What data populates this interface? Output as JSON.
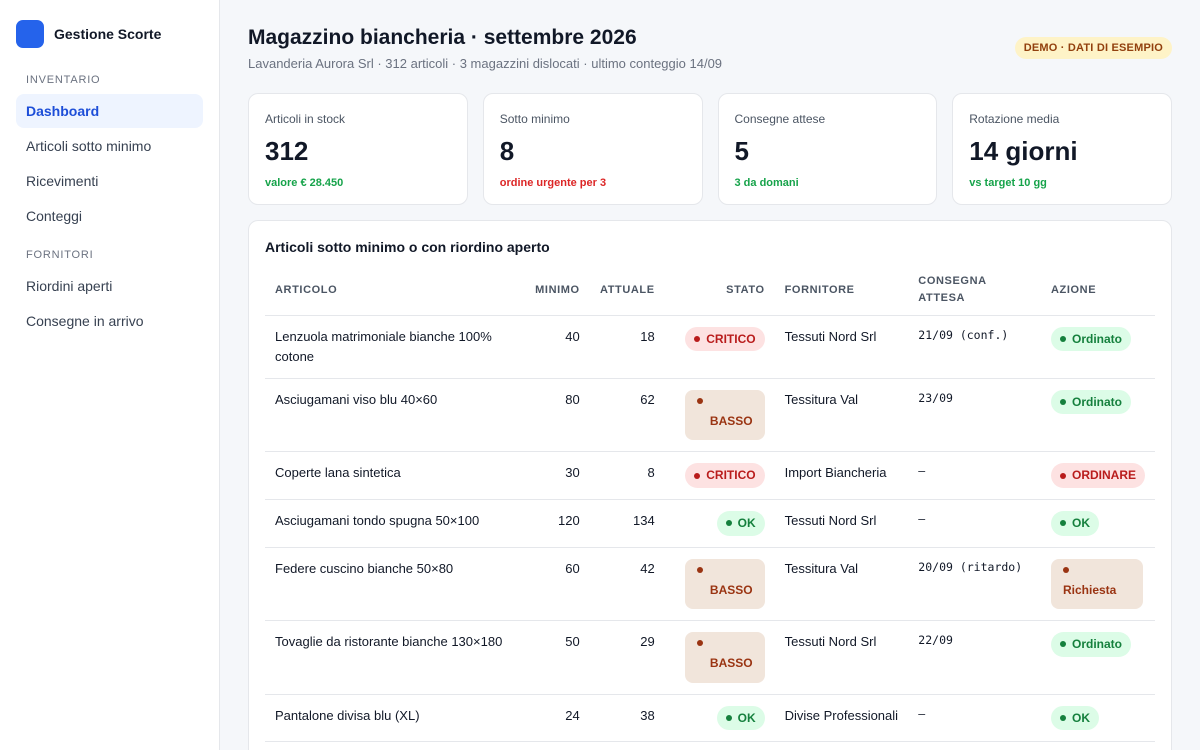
{
  "brand": {
    "name": "Gestione Scorte",
    "logo_color": "#2563eb"
  },
  "sidebar": {
    "sections": [
      {
        "title": "INVENTARIO",
        "items": [
          "Dashboard",
          "Articoli sotto minimo",
          "Ricevimenti",
          "Conteggi"
        ]
      },
      {
        "title": "FORNITORI",
        "items": [
          "Riordini aperti",
          "Consegne in arrivo"
        ]
      }
    ],
    "active": "Dashboard"
  },
  "header": {
    "title": "Magazzino biancheria · settembre 2026",
    "subtitle": "Lavanderia Aurora Srl · 312 articoli · 3 magazzini dislocati · ultimo conteggio 14/09",
    "badge": "DEMO · DATI DI ESEMPIO"
  },
  "kpis": [
    {
      "label": "Articoli in stock",
      "value": "312",
      "note": "valore € 28.450",
      "tone": "green"
    },
    {
      "label": "Sotto minimo",
      "value": "8",
      "note": "ordine urgente per 3",
      "tone": "red"
    },
    {
      "label": "Consegne attese",
      "value": "5",
      "note": "3 da domani",
      "tone": "green"
    },
    {
      "label": "Rotazione media",
      "value": "14 giorni",
      "note": "vs target 10 gg",
      "tone": "green"
    }
  ],
  "table": {
    "title": "Articoli sotto minimo o con riordino aperto",
    "columns": [
      "ARTICOLO",
      "MINIMO",
      "ATTUALE",
      "STATO",
      "FORNITORE",
      "CONSEGNA ATTESA",
      "AZIONE"
    ],
    "rows": [
      {
        "articolo": "Lenzuola matrimoniale bianche 100% cotone",
        "minimo": "40",
        "attuale": "18",
        "stato": "CRITICO",
        "stato_kind": "critico",
        "fornitore": "Tessuti Nord Srl",
        "consegna": "21/09 (conf.)",
        "azione": "Ordinato",
        "azione_kind": "ordinato"
      },
      {
        "articolo": "Asciugamani viso blu 40×60",
        "minimo": "80",
        "attuale": "62",
        "stato": "BASSO",
        "stato_kind": "basso",
        "fornitore": "Tessitura Val",
        "consegna": "23/09",
        "azione": "Ordinato",
        "azione_kind": "ordinato"
      },
      {
        "articolo": "Coperte lana sintetica",
        "minimo": "30",
        "attuale": "8",
        "stato": "CRITICO",
        "stato_kind": "critico",
        "fornitore": "Import Biancheria",
        "consegna": "—",
        "azione": "ORDINARE",
        "azione_kind": "ordinare"
      },
      {
        "articolo": "Asciugamani tondo spugna 50×100",
        "minimo": "120",
        "attuale": "134",
        "stato": "OK",
        "stato_kind": "ok",
        "fornitore": "Tessuti Nord Srl",
        "consegna": "—",
        "azione": "OK",
        "azione_kind": "ok"
      },
      {
        "articolo": "Federe cuscino bianche 50×80",
        "minimo": "60",
        "attuale": "42",
        "stato": "BASSO",
        "stato_kind": "basso",
        "fornitore": "Tessitura Val",
        "consegna": "20/09 (ritardo)",
        "azione": "Richiesta",
        "azione_kind": "richiesta"
      },
      {
        "articolo": "Tovaglie da ristorante bianche 130×180",
        "minimo": "50",
        "attuale": "29",
        "stato": "BASSO",
        "stato_kind": "basso",
        "fornitore": "Tessuti Nord Srl",
        "consegna": "22/09",
        "azione": "Ordinato",
        "azione_kind": "ordinato"
      },
      {
        "articolo": "Pantalone divisa blu (XL)",
        "minimo": "24",
        "attuale": "38",
        "stato": "OK",
        "stato_kind": "ok",
        "fornitore": "Divise Professionali",
        "consegna": "—",
        "azione": "OK",
        "azione_kind": "ok"
      }
    ]
  }
}
